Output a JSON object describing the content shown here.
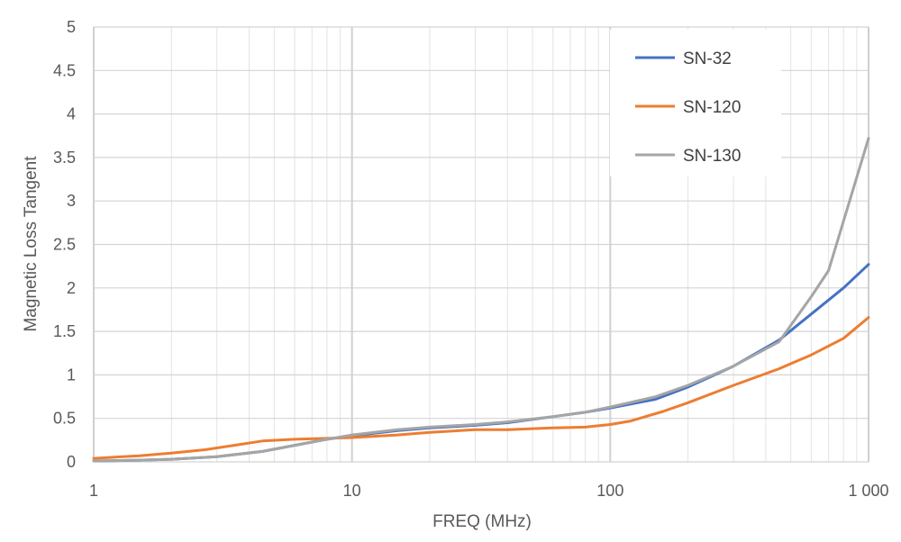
{
  "chart_data": {
    "type": "line",
    "title": "",
    "xlabel": "FREQ (MHz)",
    "ylabel": "Magnetic Loss Tangent",
    "xscale": "log",
    "xlim": [
      1,
      1000
    ],
    "ylim": [
      0,
      5
    ],
    "grid": true,
    "legend_position": "top-right",
    "x_ticks": [
      {
        "value": 1,
        "label": "1"
      },
      {
        "value": 10,
        "label": "10"
      },
      {
        "value": 100,
        "label": "100"
      },
      {
        "value": 1000,
        "label": "1 000"
      }
    ],
    "y_ticks": [
      {
        "value": 0,
        "label": "0"
      },
      {
        "value": 0.5,
        "label": "0.5"
      },
      {
        "value": 1,
        "label": "1"
      },
      {
        "value": 1.5,
        "label": "1.5"
      },
      {
        "value": 2,
        "label": "2"
      },
      {
        "value": 2.5,
        "label": "2.5"
      },
      {
        "value": 3,
        "label": "3"
      },
      {
        "value": 3.5,
        "label": "3.5"
      },
      {
        "value": 4,
        "label": "4"
      },
      {
        "value": 4.5,
        "label": "4.5"
      },
      {
        "value": 5,
        "label": "5"
      }
    ],
    "series": [
      {
        "name": "SN-32",
        "color": "#4472C4",
        "x": [
          1,
          1.5,
          2,
          3,
          4.5,
          6,
          8,
          10,
          15,
          20,
          30,
          40,
          60,
          80,
          100,
          150,
          200,
          300,
          450,
          600,
          800,
          1000
        ],
        "y": [
          0.01,
          0.02,
          0.03,
          0.06,
          0.12,
          0.19,
          0.26,
          0.3,
          0.36,
          0.39,
          0.42,
          0.45,
          0.52,
          0.57,
          0.62,
          0.72,
          0.86,
          1.1,
          1.4,
          1.7,
          2.0,
          2.27
        ]
      },
      {
        "name": "SN-120",
        "color": "#ED7D31",
        "x": [
          1,
          1.5,
          2,
          2.7,
          3.5,
          4.5,
          6,
          8,
          10,
          15,
          20,
          30,
          40,
          60,
          80,
          100,
          120,
          160,
          200,
          300,
          450,
          600,
          800,
          1000
        ],
        "y": [
          0.04,
          0.07,
          0.1,
          0.14,
          0.19,
          0.24,
          0.26,
          0.27,
          0.28,
          0.31,
          0.34,
          0.37,
          0.37,
          0.39,
          0.4,
          0.43,
          0.47,
          0.58,
          0.68,
          0.88,
          1.07,
          1.23,
          1.42,
          1.66
        ]
      },
      {
        "name": "SN-130",
        "color": "#A5A5A5",
        "x": [
          1,
          1.5,
          2,
          3,
          4.5,
          6,
          8,
          10,
          15,
          20,
          30,
          40,
          60,
          80,
          100,
          150,
          200,
          300,
          450,
          600,
          700,
          1000
        ],
        "y": [
          0.01,
          0.02,
          0.03,
          0.06,
          0.12,
          0.19,
          0.26,
          0.31,
          0.37,
          0.4,
          0.43,
          0.46,
          0.52,
          0.57,
          0.63,
          0.75,
          0.88,
          1.1,
          1.38,
          1.9,
          2.2,
          3.72
        ]
      }
    ]
  }
}
